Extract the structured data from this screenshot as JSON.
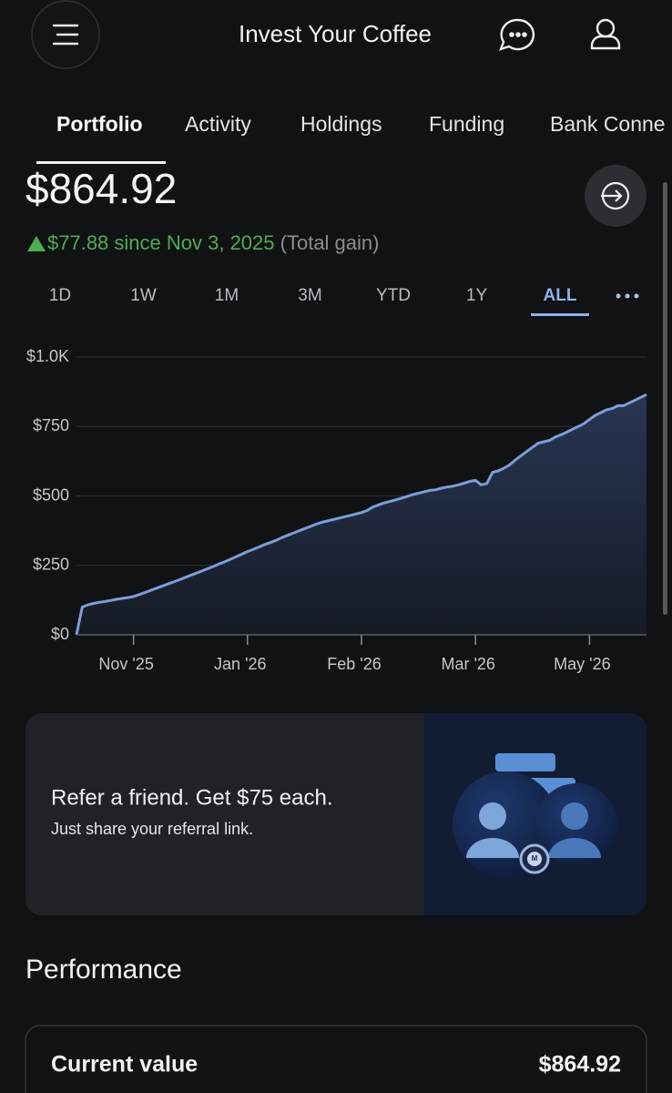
{
  "header": {
    "title": "Invest Your Coffee"
  },
  "tabs": {
    "items": [
      "Portfolio",
      "Activity",
      "Holdings",
      "Funding",
      "Bank Conne"
    ],
    "selected": 0
  },
  "portfolio": {
    "balance": "$864.92",
    "gain": "$77.88 since Nov 3, 2025",
    "gain_note": "(Total gain)"
  },
  "ranges": {
    "items": [
      "1D",
      "1W",
      "1M",
      "3M",
      "YTD",
      "1Y",
      "ALL"
    ],
    "selected": 6
  },
  "chart_data": {
    "type": "area",
    "color": "#7b9fd6",
    "values": [
      0,
      100,
      108,
      113,
      117,
      120,
      124,
      128,
      131,
      134,
      138,
      145,
      152,
      160,
      168,
      175,
      183,
      190,
      198,
      206,
      214,
      222,
      230,
      238,
      246,
      255,
      263,
      272,
      281,
      290,
      300,
      308,
      316,
      325,
      332,
      340,
      350,
      358,
      366,
      374,
      382,
      390,
      398,
      405,
      410,
      415,
      420,
      425,
      430,
      435,
      440,
      448,
      460,
      468,
      475,
      480,
      486,
      492,
      498,
      505,
      510,
      515,
      520,
      522,
      528,
      532,
      535,
      540,
      546,
      552,
      556,
      540,
      545,
      585,
      590,
      600,
      612,
      630,
      645,
      660,
      675,
      690,
      695,
      700,
      712,
      720,
      730,
      740,
      750,
      760,
      775,
      790,
      800,
      810,
      815,
      825,
      825,
      835,
      845,
      855,
      865
    ],
    "xlim": [
      0,
      100
    ],
    "xticks": [
      {
        "value": 10,
        "label": "Nov '25"
      },
      {
        "value": 30,
        "label": "Jan '26"
      },
      {
        "value": 50,
        "label": "Feb '26"
      },
      {
        "value": 70,
        "label": "Mar '26"
      },
      {
        "value": 90,
        "label": "May '26"
      }
    ],
    "ylim": [
      0,
      1000
    ],
    "yticks": [
      {
        "value": 0,
        "label": "$0"
      },
      {
        "value": 250,
        "label": "$250"
      },
      {
        "value": 500,
        "label": "$500"
      },
      {
        "value": 750,
        "label": "$750"
      },
      {
        "value": 1000,
        "label": "$1.0K"
      }
    ],
    "grid": true
  },
  "promo": {
    "title": "Refer a friend. Get $75 each.",
    "subtitle": "Just share your referral link.",
    "badge": "M"
  },
  "performance": {
    "heading": "Performance",
    "rows": [
      [
        "Current value",
        "$864.92"
      ]
    ]
  }
}
